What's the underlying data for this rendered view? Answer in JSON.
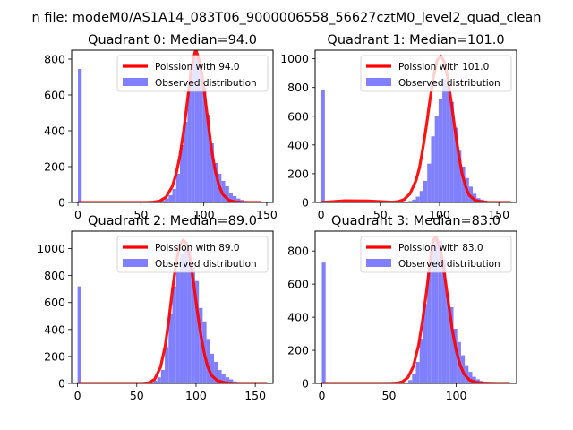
{
  "figure": {
    "suptitle": "n file: modeM0/AS1A14_083T06_9000006558_56627cztM0_level2_quad_clean"
  },
  "chart_data": [
    {
      "type": "bar",
      "title": "Quadrant 0: Median=94.0",
      "xlabel": "",
      "ylabel": "",
      "xlim": [
        -5,
        155
      ],
      "ylim": [
        0,
        850
      ],
      "xticks": [
        0,
        50,
        100,
        150
      ],
      "yticks": [
        0,
        200,
        400,
        600,
        800
      ],
      "legend": {
        "location": "top-right",
        "entries": [
          "Poission with 94.0",
          "Observed distribution"
        ]
      },
      "colors": {
        "poisson": "#ff0000",
        "observed": "#8080ff"
      },
      "histogram": {
        "name": "Observed distribution",
        "bin_width": 3,
        "bin_starts": [
          0,
          3,
          6,
          9,
          12,
          15,
          18,
          21,
          24,
          27,
          30,
          33,
          36,
          39,
          42,
          45,
          48,
          51,
          54,
          57,
          60,
          63,
          66,
          69,
          72,
          75,
          78,
          81,
          84,
          87,
          90,
          93,
          96,
          99,
          102,
          105,
          108,
          111,
          114,
          117,
          120,
          123,
          126,
          129,
          132,
          135,
          138,
          141,
          144
        ],
        "counts": [
          745,
          0,
          0,
          0,
          0,
          0,
          0,
          0,
          0,
          0,
          0,
          0,
          0,
          0,
          0,
          0,
          0,
          0,
          0,
          2,
          3,
          6,
          12,
          22,
          40,
          75,
          160,
          320,
          450,
          680,
          785,
          810,
          740,
          640,
          490,
          330,
          220,
          160,
          120,
          90,
          55,
          35,
          22,
          14,
          8,
          5,
          3,
          2,
          1
        ]
      },
      "poisson_curve": {
        "name": "Poission with 94.0",
        "x": [
          0,
          40,
          55,
          60,
          65,
          70,
          75,
          78,
          81,
          84,
          87,
          90,
          93,
          94,
          97,
          100,
          103,
          106,
          109,
          112,
          115,
          120,
          125,
          130,
          140,
          145
        ],
        "y": [
          0,
          0,
          0,
          2,
          8,
          30,
          90,
          160,
          260,
          400,
          570,
          740,
          840,
          845,
          780,
          640,
          470,
          300,
          180,
          95,
          45,
          12,
          3,
          1,
          0,
          0
        ]
      }
    },
    {
      "type": "bar",
      "title": "Quadrant 1: Median=101.0",
      "xlabel": "",
      "ylabel": "",
      "xlim": [
        -5,
        165
      ],
      "ylim": [
        0,
        1060
      ],
      "xticks": [
        0,
        50,
        100,
        150
      ],
      "yticks": [
        0,
        200,
        400,
        600,
        800,
        1000
      ],
      "legend": {
        "location": "top-right",
        "entries": [
          "Poission with 101.0",
          "Observed distribution"
        ]
      },
      "colors": {
        "poisson": "#ff0000",
        "observed": "#8080ff"
      },
      "histogram": {
        "name": "Observed distribution",
        "bin_width": 3.2,
        "bin_starts": [
          0,
          3.2,
          6.4,
          9.6,
          12.8,
          16,
          19.2,
          22.4,
          25.6,
          28.8,
          32,
          35.2,
          38.4,
          41.6,
          44.8,
          48,
          51.2,
          54.4,
          57.6,
          60.8,
          64,
          67.2,
          70.4,
          73.6,
          76.8,
          80,
          83.2,
          86.4,
          89.6,
          92.8,
          96,
          99.2,
          102.4,
          105.6,
          108.8,
          112,
          115.2,
          118.4,
          121.6,
          124.8,
          128,
          131.2,
          134.4,
          137.6,
          140.8,
          144,
          147.2,
          150.4,
          153.6,
          156.8
        ],
        "counts": [
          785,
          0,
          0,
          0,
          0,
          0,
          0,
          0,
          0,
          0,
          0,
          0,
          0,
          0,
          0,
          0,
          0,
          0,
          0,
          0,
          0,
          2,
          4,
          10,
          20,
          40,
          80,
          150,
          270,
          460,
          600,
          720,
          860,
          820,
          700,
          520,
          360,
          250,
          170,
          110,
          60,
          30,
          20,
          12,
          8,
          5,
          3,
          2,
          1,
          1
        ]
      },
      "poisson_curve": {
        "name": "Poission with 101.0",
        "x": [
          0,
          20,
          40,
          60,
          65,
          70,
          75,
          80,
          83,
          86,
          89,
          92,
          95,
          98,
          101,
          104,
          107,
          110,
          113,
          116,
          119,
          122,
          125,
          130,
          135,
          140,
          160
        ],
        "y": [
          0,
          12,
          10,
          2,
          6,
          20,
          60,
          150,
          240,
          380,
          540,
          720,
          880,
          990,
          1020,
          980,
          860,
          690,
          510,
          340,
          200,
          110,
          50,
          15,
          5,
          1,
          0
        ]
      }
    },
    {
      "type": "bar",
      "title": "Quadrant 2: Median=89.0",
      "xlabel": "",
      "ylabel": "",
      "xlim": [
        -5,
        165
      ],
      "ylim": [
        0,
        1130
      ],
      "xticks": [
        0,
        50,
        100,
        150
      ],
      "yticks": [
        0,
        200,
        400,
        600,
        800,
        1000
      ],
      "legend": {
        "location": "top-right",
        "entries": [
          "Poission with 89.0",
          "Observed distribution"
        ]
      },
      "colors": {
        "poisson": "#ff0000",
        "observed": "#8080ff"
      },
      "histogram": {
        "name": "Observed distribution",
        "bin_width": 3.2,
        "bin_starts": [
          0,
          3.2,
          6.4,
          9.6,
          12.8,
          16,
          19.2,
          22.4,
          25.6,
          28.8,
          32,
          35.2,
          38.4,
          41.6,
          44.8,
          48,
          51.2,
          54.4,
          57.6,
          60.8,
          64,
          67.2,
          70.4,
          73.6,
          76.8,
          80,
          83.2,
          86.4,
          89.6,
          92.8,
          96,
          99.2,
          102.4,
          105.6,
          108.8,
          112,
          115.2,
          118.4,
          121.6,
          124.8,
          128,
          131.2,
          134.4,
          137.6,
          140.8,
          144,
          147.2,
          150.4,
          153.6,
          156.8
        ],
        "counts": [
          720,
          0,
          0,
          0,
          0,
          0,
          0,
          0,
          0,
          0,
          0,
          0,
          0,
          0,
          0,
          0,
          0,
          0,
          3,
          8,
          20,
          45,
          100,
          270,
          520,
          720,
          840,
          960,
          1000,
          990,
          860,
          760,
          560,
          460,
          330,
          220,
          160,
          100,
          70,
          45,
          30,
          15,
          10,
          6,
          4,
          3,
          2,
          1,
          1,
          1
        ]
      },
      "poisson_curve": {
        "name": "Poission with 89.0",
        "x": [
          0,
          55,
          60,
          65,
          70,
          74,
          77,
          80,
          83,
          86,
          89,
          92,
          95,
          98,
          101,
          104,
          107,
          110,
          113,
          118,
          125,
          130,
          160
        ],
        "y": [
          0,
          0,
          5,
          30,
          120,
          280,
          470,
          690,
          880,
          1020,
          1065,
          1040,
          920,
          740,
          540,
          360,
          220,
          120,
          60,
          20,
          5,
          1,
          0
        ]
      }
    },
    {
      "type": "bar",
      "title": "Quadrant 3: Median=83.0",
      "xlabel": "",
      "ylabel": "",
      "xlim": [
        -5,
        145
      ],
      "ylim": [
        0,
        920
      ],
      "xticks": [
        0,
        50,
        100
      ],
      "yticks": [
        0,
        200,
        400,
        600,
        800
      ],
      "legend": {
        "location": "top-right",
        "entries": [
          "Poission with 83.0",
          "Observed distribution"
        ]
      },
      "colors": {
        "poisson": "#ff0000",
        "observed": "#8080ff"
      },
      "histogram": {
        "name": "Observed distribution",
        "bin_width": 2.8,
        "bin_starts": [
          0,
          2.8,
          5.6,
          8.4,
          11.2,
          14,
          16.8,
          19.6,
          22.4,
          25.2,
          28,
          30.8,
          33.6,
          36.4,
          39.2,
          42,
          44.8,
          47.6,
          50.4,
          53.2,
          56,
          58.8,
          61.6,
          64.4,
          67.2,
          70,
          72.8,
          75.6,
          78.4,
          81.2,
          84,
          86.8,
          89.6,
          92.4,
          95.2,
          98,
          100.8,
          103.6,
          106.4,
          109.2,
          112,
          114.8,
          117.6,
          120.4,
          123.2,
          126,
          128.8,
          131.6
        ],
        "counts": [
          730,
          0,
          0,
          0,
          0,
          0,
          0,
          0,
          0,
          0,
          0,
          0,
          0,
          0,
          0,
          0,
          0,
          0,
          0,
          0,
          0,
          2,
          6,
          20,
          60,
          130,
          270,
          480,
          680,
          840,
          880,
          860,
          750,
          540,
          460,
          330,
          250,
          170,
          110,
          70,
          40,
          25,
          15,
          8,
          5,
          3,
          2,
          1
        ]
      },
      "poisson_curve": {
        "name": "Poission with 83.0",
        "x": [
          0,
          50,
          56,
          60,
          64,
          68,
          72,
          75,
          78,
          81,
          83,
          85,
          88,
          91,
          94,
          97,
          100,
          103,
          106,
          110,
          115,
          120,
          130,
          140
        ],
        "y": [
          0,
          0,
          2,
          10,
          35,
          100,
          230,
          380,
          560,
          760,
          870,
          880,
          820,
          680,
          500,
          330,
          200,
          110,
          55,
          20,
          6,
          2,
          0,
          0
        ]
      }
    }
  ]
}
